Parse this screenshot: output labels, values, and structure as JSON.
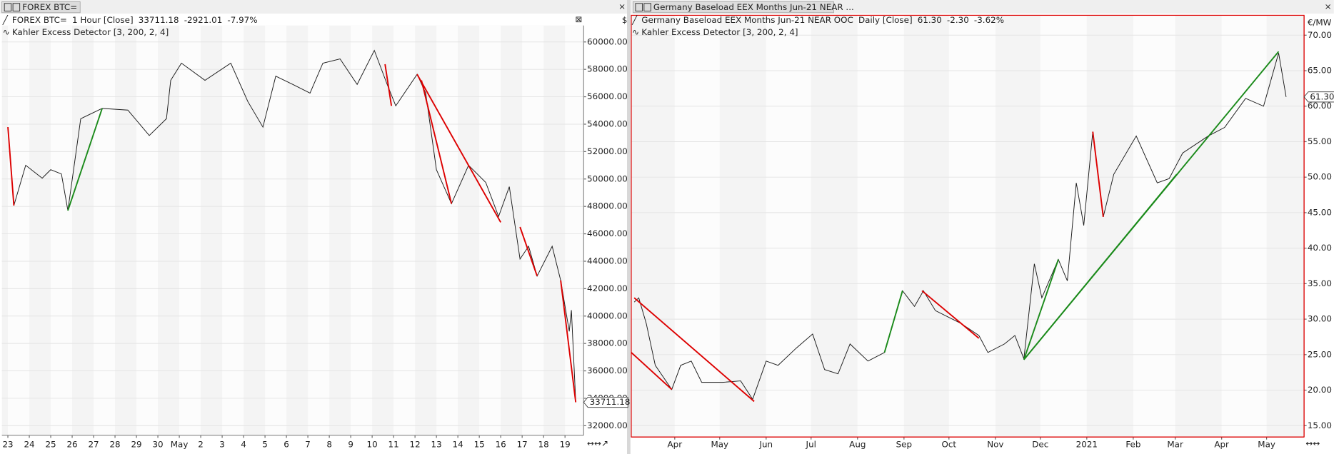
{
  "chart_data": [
    {
      "type": "line",
      "tab_title": "FOREX BTC=",
      "title": "FOREX BTC=",
      "subtitle": "1 Hour [Close]",
      "last": 33711.18,
      "change": -2921.01,
      "change_pct": "-7.97%",
      "indicator": "Kahler Excess Detector [3, 200, 2, 4]",
      "unit": "$",
      "x": [
        0,
        0.28,
        0.83,
        1.6,
        2.0,
        2.5,
        2.8,
        3.4,
        4.4,
        5.6,
        6.6,
        7.4,
        7.6,
        8.1,
        9.2,
        10.4,
        11.2,
        11.9,
        12.5,
        13.3,
        14.1,
        14.7,
        15.5,
        16.3,
        17.1,
        17.7,
        18.1,
        19.1,
        19.5,
        20.0,
        20.7,
        21.5,
        22.3,
        22.9,
        23.4,
        23.9,
        24.3,
        24.7,
        25.4,
        25.8,
        26.2,
        26.3,
        26.5
      ],
      "series": [
        {
          "color": "#1a1a1a",
          "values": [
            53790,
            48070,
            51000,
            50060,
            50680,
            50370,
            47700,
            54400,
            55150,
            55030,
            53170,
            54400,
            57200,
            58450,
            57200,
            58450,
            55650,
            53790,
            57500,
            56900,
            56270,
            58450,
            58760,
            56900,
            59380,
            56900,
            55340,
            57640,
            56270,
            50680,
            48200,
            51000,
            49750,
            47270,
            49440,
            44160,
            45090,
            42920,
            45090,
            42600,
            38880,
            40430,
            33711.18
          ]
        }
      ],
      "signals": [
        {
          "color": "#dd0000",
          "x": [
            0,
            0.28
          ],
          "values": [
            53790,
            48070
          ]
        },
        {
          "color": "#1a8a1a",
          "x": [
            2.8,
            4.4
          ],
          "values": [
            47700,
            55150
          ]
        },
        {
          "color": "#dd0000",
          "x": [
            17.6,
            17.9
          ],
          "values": [
            58380,
            55340
          ]
        },
        {
          "color": "#dd0000",
          "x": [
            19.1,
            23.0
          ],
          "values": [
            57640,
            46840
          ]
        },
        {
          "color": "#dd0000",
          "x": [
            19.3,
            20.7
          ],
          "values": [
            57200,
            48200
          ]
        },
        {
          "color": "#dd0000",
          "x": [
            23.9,
            24.7
          ],
          "values": [
            46500,
            42920
          ]
        },
        {
          "color": "#dd0000",
          "x": [
            25.8,
            26.5
          ],
          "values": [
            42600,
            33711.18
          ]
        }
      ],
      "xlim": [
        -0.28,
        26.87
      ],
      "ylim": [
        31300,
        61200
      ],
      "xticks": [
        {
          "value": 0,
          "label": "23"
        },
        {
          "value": 1,
          "label": "24"
        },
        {
          "value": 2,
          "label": "25"
        },
        {
          "value": 3,
          "label": "26"
        },
        {
          "value": 4,
          "label": "27"
        },
        {
          "value": 5,
          "label": "28"
        },
        {
          "value": 6,
          "label": "29"
        },
        {
          "value": 7,
          "label": "30"
        },
        {
          "value": 8,
          "label": "May"
        },
        {
          "value": 9,
          "label": "2"
        },
        {
          "value": 10,
          "label": "3"
        },
        {
          "value": 11,
          "label": "4"
        },
        {
          "value": 12,
          "label": "5"
        },
        {
          "value": 13,
          "label": "6"
        },
        {
          "value": 14,
          "label": "7"
        },
        {
          "value": 15,
          "label": "8"
        },
        {
          "value": 16,
          "label": "9"
        },
        {
          "value": 17,
          "label": "10"
        },
        {
          "value": 18,
          "label": "11"
        },
        {
          "value": 19,
          "label": "12"
        },
        {
          "value": 20,
          "label": "13"
        },
        {
          "value": 21,
          "label": "14"
        },
        {
          "value": 22,
          "label": "15"
        },
        {
          "value": 23,
          "label": "16"
        },
        {
          "value": 24,
          "label": "17"
        },
        {
          "value": 25,
          "label": "18"
        },
        {
          "value": 26,
          "label": "19"
        }
      ],
      "yticks": [
        {
          "value": 32000,
          "label": "32000.00"
        },
        {
          "value": 34000,
          "label": "34000.00"
        },
        {
          "value": 36000,
          "label": "36000.00"
        },
        {
          "value": 38000,
          "label": "38000.00"
        },
        {
          "value": 40000,
          "label": "40000.00"
        },
        {
          "value": 42000,
          "label": "42000.00"
        },
        {
          "value": 44000,
          "label": "44000.00"
        },
        {
          "value": 46000,
          "label": "46000.00"
        },
        {
          "value": 48000,
          "label": "48000.00"
        },
        {
          "value": 50000,
          "label": "50000.00"
        },
        {
          "value": 52000,
          "label": "52000.00"
        },
        {
          "value": 54000,
          "label": "54000.00"
        },
        {
          "value": 56000,
          "label": "56000.00"
        },
        {
          "value": 58000,
          "label": "58000.00"
        },
        {
          "value": 60000,
          "label": "60000.00"
        }
      ],
      "grid": true
    },
    {
      "type": "line",
      "tab_title": "Germany Baseload EEX Months Jun-21 NEAR ...",
      "title": "Germany Baseload EEX Months Jun-21 NEAR OOC",
      "subtitle": "Daily [Close]",
      "last": "61.30",
      "change": "-2.30",
      "change_pct": "-3.62%",
      "indicator": "Kahler Excess Detector [3, 200, 2, 4]",
      "unit": "€/MW",
      "x": [
        -27,
        -24,
        -19,
        -13,
        -2,
        4,
        11,
        18,
        32,
        44,
        52,
        61,
        69,
        81,
        92,
        100,
        109,
        117,
        129,
        140,
        152,
        160,
        166,
        174,
        191,
        203,
        209,
        220,
        227,
        233,
        240,
        245,
        256,
        262,
        268,
        273,
        279,
        286,
        293,
        308,
        322,
        330,
        339,
        356,
        367,
        381,
        393,
        403,
        408
      ],
      "series": [
        {
          "color": "#1a1a1a",
          "values": [
            32.4,
            33.0,
            29.4,
            23.5,
            20.1,
            23.5,
            24.1,
            21.1,
            21.1,
            21.3,
            18.7,
            24.1,
            23.5,
            25.9,
            27.9,
            22.9,
            22.3,
            26.5,
            24.1,
            25.3,
            34.0,
            31.8,
            34.0,
            31.2,
            29.4,
            27.7,
            25.3,
            26.5,
            27.7,
            24.4,
            37.8,
            33.0,
            38.4,
            35.4,
            49.2,
            43.2,
            56.4,
            44.4,
            50.4,
            55.8,
            49.2,
            49.8,
            53.4,
            55.8,
            57.0,
            61.1,
            60.0,
            67.5,
            61.3
          ]
        }
      ],
      "signals": [
        {
          "color": "#dd0000",
          "x": [
            -27,
            53
          ],
          "values": [
            33.0,
            18.4
          ]
        },
        {
          "color": "#dd0000",
          "x": [
            -29,
            -2
          ],
          "values": [
            25.3,
            20.1
          ]
        },
        {
          "color": "#dd0000",
          "x": [
            165,
            203
          ],
          "values": [
            34.0,
            27.3
          ]
        },
        {
          "color": "#dd0000",
          "x": [
            279,
            286
          ],
          "values": [
            56.4,
            44.4
          ]
        },
        {
          "color": "#1a8a1a",
          "x": [
            233,
            403
          ],
          "values": [
            24.3,
            67.7
          ]
        },
        {
          "color": "#1a8a1a",
          "x": [
            233,
            335
          ],
          "values": [
            24.3,
            50.4
          ]
        },
        {
          "color": "#1a8a1a",
          "x": [
            233,
            256
          ],
          "values": [
            24.3,
            38.4
          ]
        },
        {
          "color": "#1a8a1a",
          "x": [
            140,
            152
          ],
          "values": [
            25.3,
            34.0
          ]
        }
      ],
      "xlim": [
        -29,
        420
      ],
      "ylim": [
        13.4,
        72.8
      ],
      "xticks": [
        {
          "value": 0,
          "label": "Apr"
        },
        {
          "value": 30,
          "label": "May"
        },
        {
          "value": 61,
          "label": "Jun"
        },
        {
          "value": 91,
          "label": "Jul"
        },
        {
          "value": 122,
          "label": "Aug"
        },
        {
          "value": 153,
          "label": "Sep"
        },
        {
          "value": 183,
          "label": "Oct"
        },
        {
          "value": 214,
          "label": "Nov"
        },
        {
          "value": 244,
          "label": "Dec"
        },
        {
          "value": 275,
          "label": "2021"
        },
        {
          "value": 306,
          "label": "Feb"
        },
        {
          "value": 334,
          "label": "Mar"
        },
        {
          "value": 365,
          "label": "Apr"
        },
        {
          "value": 395,
          "label": "May"
        }
      ],
      "yticks": [
        {
          "value": 15,
          "label": "15.00"
        },
        {
          "value": 20,
          "label": "20.00"
        },
        {
          "value": 25,
          "label": "25.00"
        },
        {
          "value": 30,
          "label": "30.00"
        },
        {
          "value": 35,
          "label": "35.00"
        },
        {
          "value": 40,
          "label": "40.00"
        },
        {
          "value": 45,
          "label": "45.00"
        },
        {
          "value": 50,
          "label": "50.00"
        },
        {
          "value": 55,
          "label": "55.00"
        },
        {
          "value": 60,
          "label": "60.00"
        },
        {
          "value": 65,
          "label": "65.00"
        },
        {
          "value": 70,
          "label": "70.00"
        }
      ],
      "grid": true
    }
  ]
}
